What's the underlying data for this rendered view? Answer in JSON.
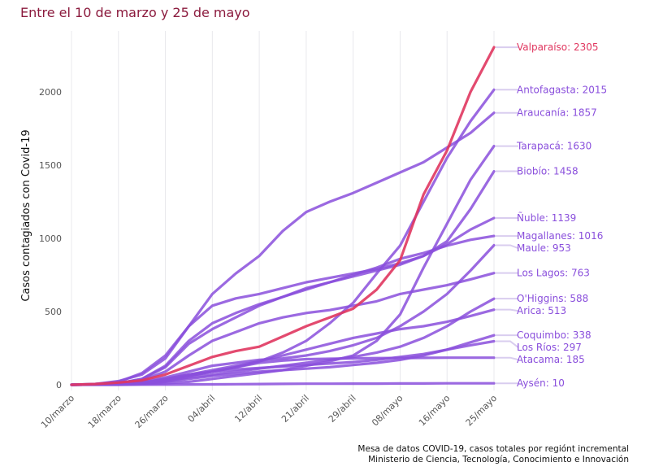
{
  "title": "Entre el 10 de marzo y 25 de mayo",
  "caption": [
    "Mesa de datos COVID-19, casos totales por regiónt incremental",
    "Ministerio de Ciencia, Tecnología, Conocimiento e Innovación"
  ],
  "colors": {
    "highlight": "#e0365f",
    "series": "#8a4fdc",
    "label_line": "#d9cdef",
    "title": "#8b1a3d"
  },
  "chart_data": {
    "type": "line",
    "title": "Entre el 10 de marzo y 25 de mayo",
    "xlabel": "",
    "ylabel": "Casos contagiados con Covid-19",
    "ylim": [
      0,
      2400
    ],
    "yticks": [
      0,
      500,
      1000,
      1500,
      2000
    ],
    "ytick_labels": [
      "0",
      "500",
      "1000",
      "1500",
      "2000"
    ],
    "x": [
      "10/marzo",
      "14/marzo",
      "18/marzo",
      "22/marzo",
      "26/marzo",
      "30/marzo",
      "04/abril",
      "08/abril",
      "12/abril",
      "16/abril",
      "21/abril",
      "25/abril",
      "29/abril",
      "03/mayo",
      "08/mayo",
      "12/mayo",
      "16/mayo",
      "20/mayo",
      "25/mayo"
    ],
    "xticks": [
      "10/marzo",
      "18/marzo",
      "26/marzo",
      "04/abril",
      "12/abril",
      "21/abril",
      "29/abril",
      "08/mayo",
      "16/mayo",
      "25/mayo"
    ],
    "grid": true,
    "legend": "end-labels-right",
    "series": [
      {
        "name": "Valparaíso",
        "final": 2305,
        "highlight": true,
        "values": [
          0,
          5,
          15,
          30,
          70,
          130,
          190,
          230,
          260,
          330,
          400,
          460,
          520,
          650,
          850,
          1300,
          1600,
          2000,
          2305
        ]
      },
      {
        "name": "Antofagasta",
        "final": 2015,
        "highlight": false,
        "values": [
          0,
          2,
          5,
          15,
          40,
          70,
          100,
          130,
          160,
          220,
          300,
          420,
          560,
          760,
          950,
          1250,
          1550,
          1800,
          2015
        ]
      },
      {
        "name": "Araucanía",
        "final": 1857,
        "highlight": false,
        "values": [
          0,
          5,
          20,
          80,
          200,
          400,
          620,
          760,
          880,
          1050,
          1180,
          1250,
          1310,
          1380,
          1450,
          1520,
          1620,
          1720,
          1857
        ]
      },
      {
        "name": "Tarapacá",
        "final": 1630,
        "highlight": false,
        "values": [
          0,
          1,
          2,
          5,
          10,
          20,
          40,
          60,
          80,
          100,
          130,
          160,
          200,
          300,
          480,
          800,
          1100,
          1400,
          1630
        ]
      },
      {
        "name": "Biobío",
        "final": 1458,
        "highlight": false,
        "values": [
          0,
          2,
          10,
          40,
          120,
          280,
          380,
          460,
          540,
          600,
          660,
          700,
          740,
          780,
          820,
          880,
          980,
          1200,
          1458
        ]
      },
      {
        "name": "Ñuble",
        "final": 1139,
        "highlight": false,
        "values": [
          0,
          5,
          25,
          70,
          180,
          400,
          540,
          590,
          620,
          660,
          700,
          730,
          760,
          790,
          830,
          880,
          960,
          1060,
          1139
        ]
      },
      {
        "name": "Magallanes",
        "final": 1016,
        "highlight": false,
        "values": [
          0,
          2,
          10,
          40,
          130,
          300,
          420,
          490,
          550,
          600,
          650,
          700,
          750,
          800,
          860,
          900,
          950,
          990,
          1016
        ]
      },
      {
        "name": "Maule",
        "final": 953,
        "highlight": false,
        "values": [
          0,
          1,
          5,
          20,
          50,
          90,
          130,
          150,
          170,
          180,
          200,
          230,
          270,
          320,
          400,
          500,
          620,
          780,
          953
        ]
      },
      {
        "name": "Los Lagos",
        "final": 763,
        "highlight": false,
        "values": [
          0,
          3,
          10,
          30,
          90,
          200,
          300,
          360,
          420,
          460,
          490,
          510,
          540,
          570,
          620,
          650,
          680,
          720,
          763
        ]
      },
      {
        "name": "O'Higgins",
        "final": 588,
        "highlight": false,
        "values": [
          0,
          1,
          3,
          10,
          25,
          50,
          70,
          90,
          110,
          130,
          150,
          170,
          190,
          220,
          260,
          320,
          400,
          500,
          588
        ]
      },
      {
        "name": "Arica",
        "final": 513,
        "highlight": false,
        "values": [
          0,
          1,
          3,
          10,
          30,
          60,
          90,
          120,
          160,
          200,
          240,
          280,
          320,
          350,
          380,
          400,
          430,
          470,
          513
        ]
      },
      {
        "name": "Coquimbo",
        "final": 338,
        "highlight": false,
        "values": [
          0,
          1,
          3,
          8,
          20,
          40,
          60,
          75,
          90,
          100,
          110,
          120,
          135,
          150,
          170,
          200,
          240,
          290,
          338
        ]
      },
      {
        "name": "Los Ríos",
        "final": 297,
        "highlight": false,
        "values": [
          0,
          1,
          5,
          15,
          40,
          70,
          90,
          105,
          115,
          125,
          135,
          145,
          155,
          170,
          190,
          210,
          240,
          270,
          297
        ]
      },
      {
        "name": "Atacama",
        "final": 185,
        "highlight": false,
        "values": [
          0,
          1,
          3,
          10,
          30,
          60,
          90,
          120,
          150,
          165,
          175,
          178,
          180,
          182,
          183,
          184,
          185,
          185,
          185
        ]
      },
      {
        "name": "Aysén",
        "final": 10,
        "highlight": false,
        "values": [
          0,
          0,
          0,
          1,
          1,
          2,
          3,
          4,
          5,
          6,
          7,
          7,
          8,
          8,
          9,
          9,
          10,
          10,
          10
        ]
      }
    ]
  }
}
